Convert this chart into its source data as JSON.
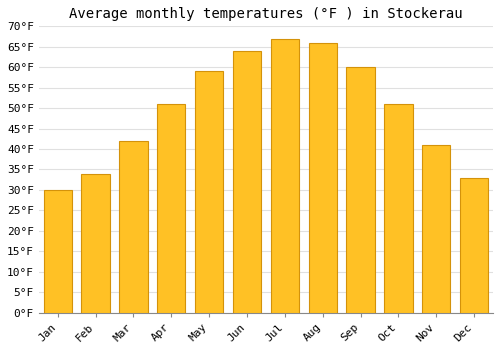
{
  "title": "Average monthly temperatures (°F ) in Stockerau",
  "months": [
    "Jan",
    "Feb",
    "Mar",
    "Apr",
    "May",
    "Jun",
    "Jul",
    "Aug",
    "Sep",
    "Oct",
    "Nov",
    "Dec"
  ],
  "values": [
    30,
    34,
    42,
    51,
    59,
    64,
    67,
    66,
    60,
    51,
    41,
    33
  ],
  "bar_color": "#FFC125",
  "bar_edge_color": "#D4920A",
  "background_color": "#FFFFFF",
  "grid_color": "#E0E0E0",
  "ylim": [
    0,
    70
  ],
  "yticks": [
    0,
    5,
    10,
    15,
    20,
    25,
    30,
    35,
    40,
    45,
    50,
    55,
    60,
    65,
    70
  ],
  "title_fontsize": 10,
  "tick_fontsize": 8,
  "font_family": "monospace",
  "bar_width": 0.75
}
